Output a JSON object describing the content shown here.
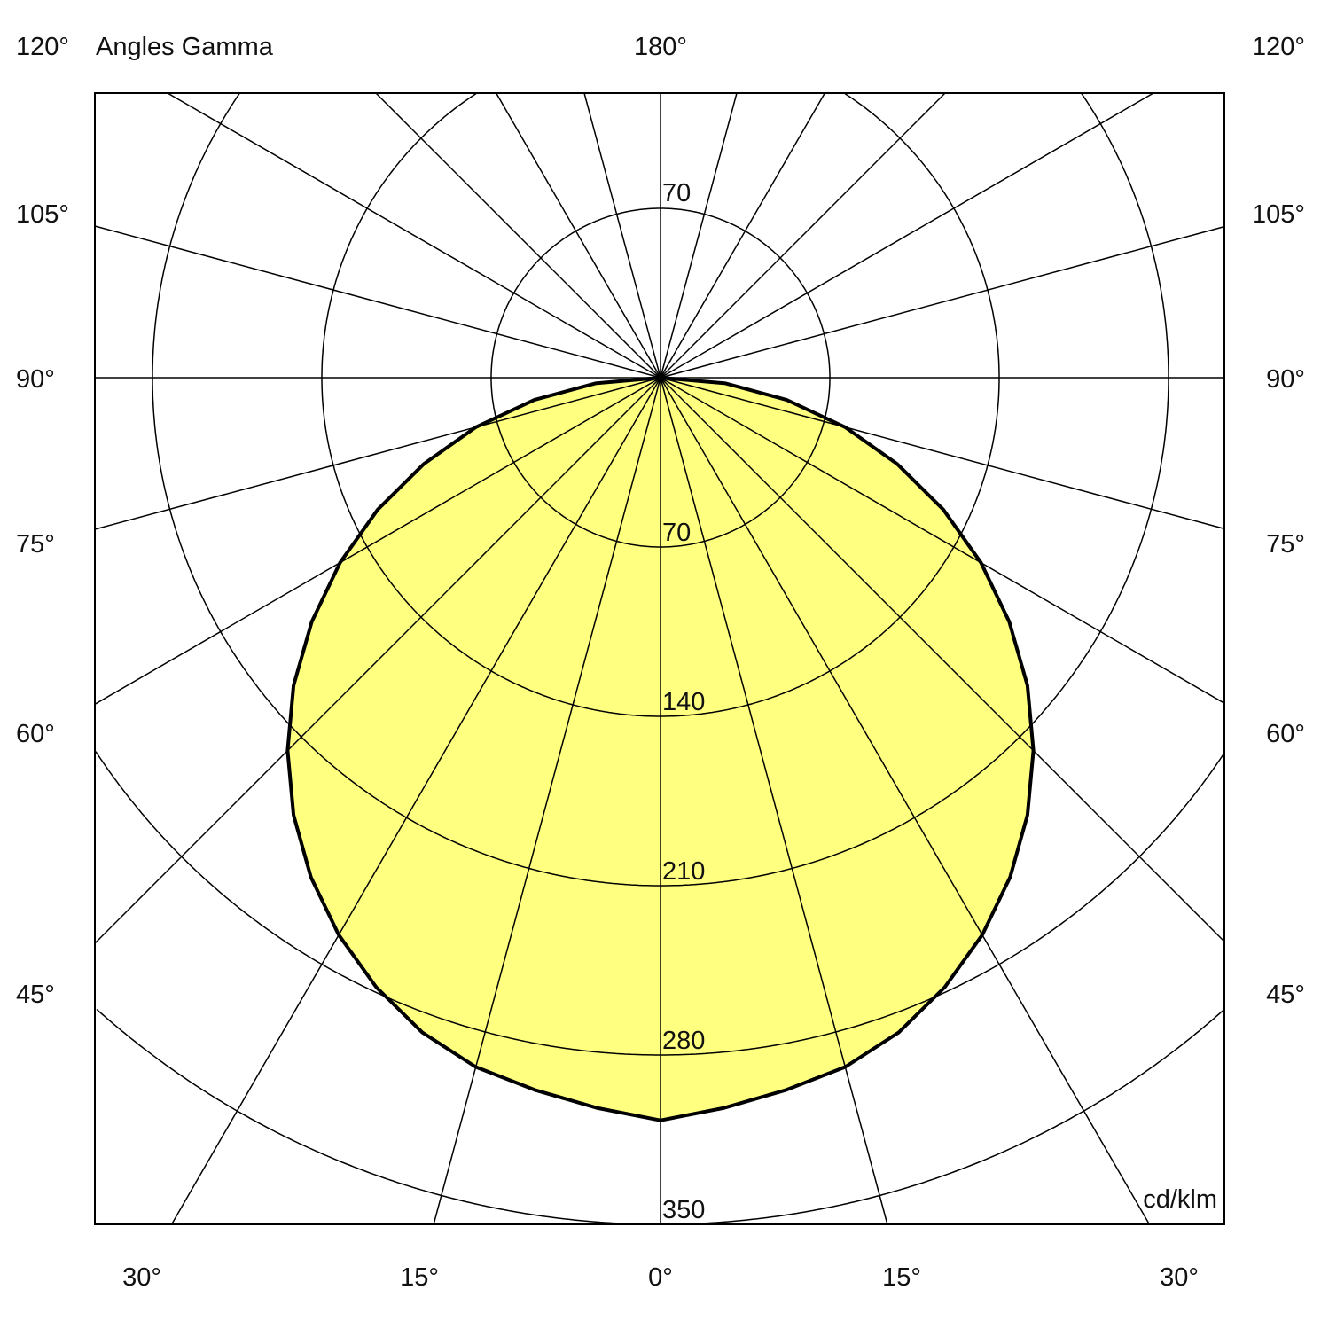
{
  "chart_data": {
    "type": "polar",
    "title": "Angles Gamma",
    "unit_label": "cd/klm",
    "top_angle_labels": {
      "left": "120°",
      "center": "180°",
      "right": "120°"
    },
    "side_angle_labels": [
      "105°",
      "90°",
      "75°",
      "60°",
      "45°"
    ],
    "bottom_angle_labels": [
      "30°",
      "15°",
      "0°",
      "15°",
      "30°"
    ],
    "radial_ticks": [
      70,
      140,
      210,
      280,
      350
    ],
    "radial_tick_labels": [
      "70",
      "140",
      "210",
      "280",
      "350"
    ],
    "top_radial_label": "70",
    "gamma_ray_step_deg": 15,
    "rmax": 350,
    "grid": true,
    "fill_color": "#ffff80",
    "line_color": "#000000",
    "series": [
      {
        "gamma_deg": [
          0,
          5,
          10,
          15,
          20,
          25,
          30,
          35,
          40,
          45,
          50,
          55,
          60,
          65,
          70,
          75,
          80,
          85,
          90
        ],
        "intensity": [
          307,
          303,
          299,
          295,
          288,
          278,
          266,
          252,
          236,
          218,
          198,
          176,
          153,
          129,
          104,
          79,
          53,
          27,
          0
        ],
        "symmetric": true
      }
    ]
  }
}
